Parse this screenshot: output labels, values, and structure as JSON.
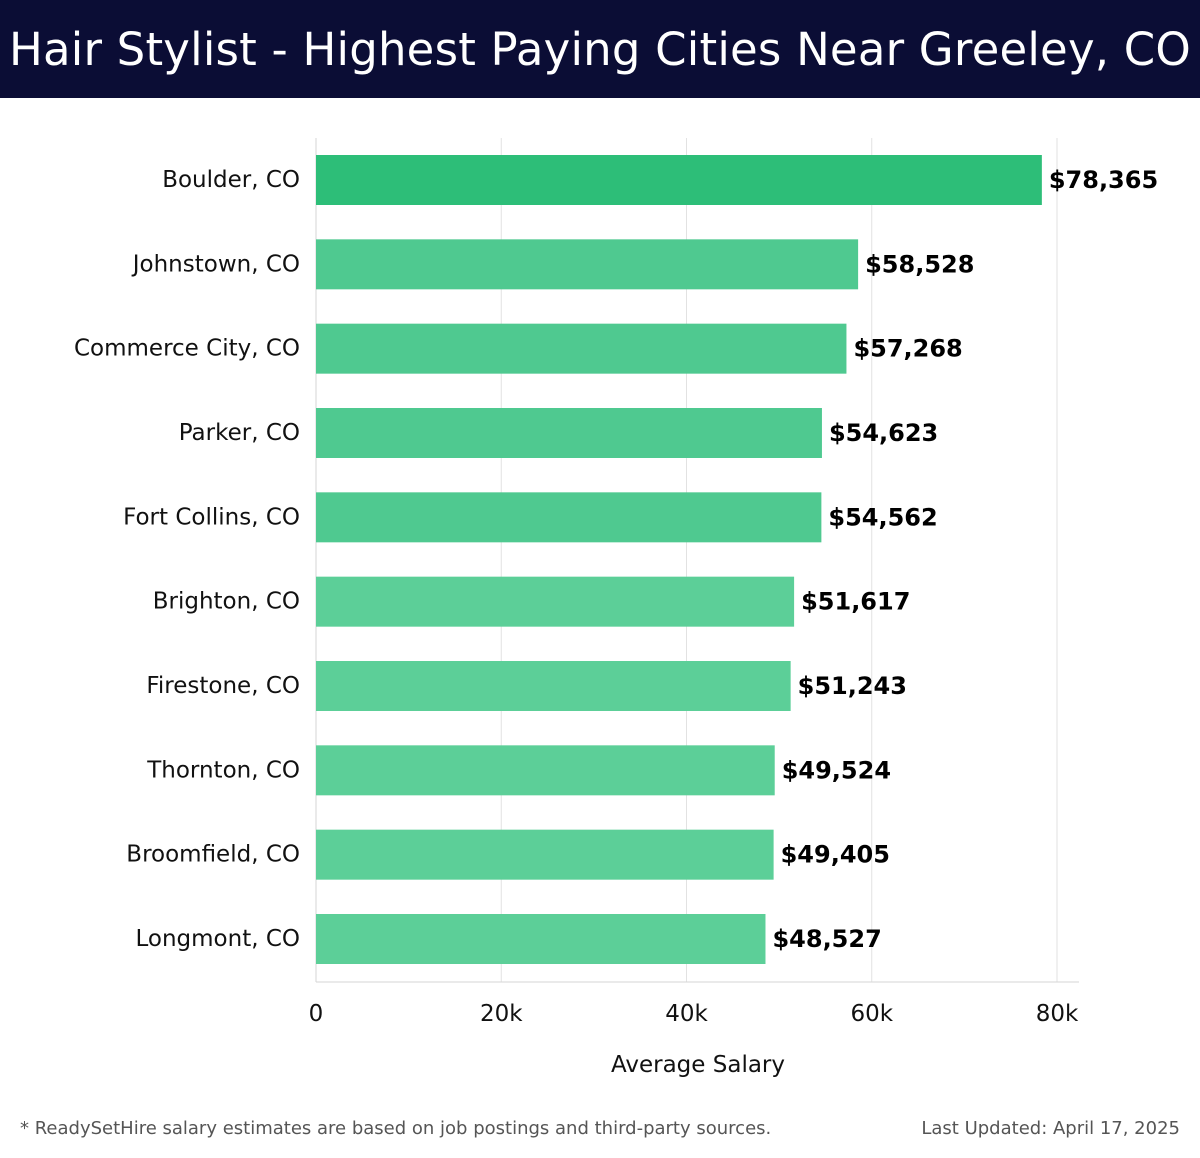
{
  "header": {
    "title": "Hair Stylist - Highest Paying Cities Near Greeley, CO"
  },
  "chart_data": {
    "type": "bar",
    "orientation": "horizontal",
    "categories": [
      "Boulder, CO",
      "Johnstown, CO",
      "Commerce City, CO",
      "Parker, CO",
      "Fort Collins, CO",
      "Brighton, CO",
      "Firestone, CO",
      "Thornton, CO",
      "Broomfield, CO",
      "Longmont, CO"
    ],
    "values": [
      78365,
      58528,
      57268,
      54623,
      54562,
      51617,
      51243,
      49524,
      49405,
      48527
    ],
    "value_labels": [
      "$78,365",
      "$58,528",
      "$57,268",
      "$54,623",
      "$54,562",
      "$51,617",
      "$51,243",
      "$49,524",
      "$49,405",
      "$48,527"
    ],
    "xlabel": "Average Salary",
    "ylabel": "",
    "xlim": [
      0,
      80000
    ],
    "ticks": [
      0,
      20000,
      40000,
      60000,
      80000
    ],
    "tick_labels": [
      "0",
      "20k",
      "40k",
      "60k",
      "80k"
    ],
    "grid": true,
    "colors": {
      "top_bar": "#2dbe78",
      "bar": "#4fc990",
      "bar_light": "#5ccf98"
    }
  },
  "footer": {
    "note": "* ReadySetHire salary estimates are based on job postings and third-party sources.",
    "updated": "Last Updated: April 17, 2025"
  }
}
